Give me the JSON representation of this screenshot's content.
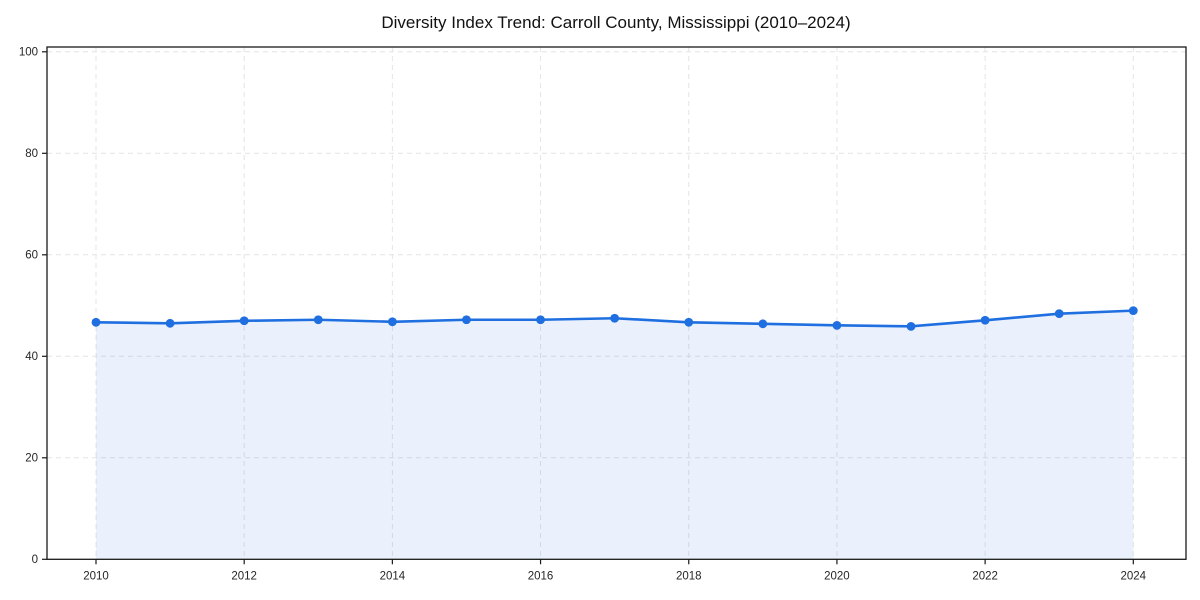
{
  "page": {
    "background": "#ffffff"
  },
  "chart_data": {
    "type": "line",
    "title": "Diversity Index Trend: Carroll County, Mississippi (2010–2024)",
    "x": [
      2010,
      2011,
      2012,
      2013,
      2014,
      2015,
      2016,
      2017,
      2018,
      2019,
      2020,
      2021,
      2022,
      2023,
      2024
    ],
    "values": [
      46.7,
      46.5,
      47.0,
      47.2,
      46.8,
      47.2,
      47.2,
      47.5,
      46.7,
      46.4,
      46.1,
      45.9,
      47.1,
      48.4,
      49.0
    ],
    "series_name": "Diversity Index",
    "xticks": [
      2010,
      2012,
      2014,
      2016,
      2018,
      2020,
      2022,
      2024
    ],
    "yticks": [
      0,
      20,
      40,
      60,
      80,
      100
    ],
    "ylim": [
      0,
      100
    ],
    "xlabel": "",
    "ylabel": "",
    "legend": "none",
    "grid": "dashed",
    "area_fill": true,
    "line_color": "#1f6fe0",
    "marker_color": "#1f6fe0",
    "fill_color": "rgba(31,111,224,0.095)",
    "grid_color": "#e4e4e4",
    "axis_color": "#1a1a1a",
    "tick_label_color": "#262626",
    "title_color": "#111111"
  }
}
